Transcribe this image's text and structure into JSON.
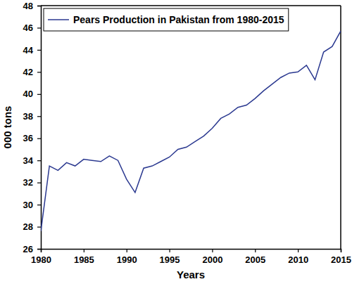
{
  "chart_data": {
    "type": "line",
    "x_label": "Years",
    "y_label": "000 tons",
    "x": [
      1980,
      1981,
      1982,
      1983,
      1984,
      1985,
      1986,
      1987,
      1988,
      1989,
      1990,
      1991,
      1992,
      1993,
      1994,
      1995,
      1996,
      1997,
      1998,
      1999,
      2000,
      2001,
      2002,
      2003,
      2004,
      2005,
      2006,
      2007,
      2008,
      2009,
      2010,
      2011,
      2012,
      2013,
      2014,
      2015
    ],
    "series": [
      {
        "name": "Pears Production in Pakistan from 1980-2015",
        "color": "#2b3990",
        "values": [
          27.6,
          33.5,
          33.1,
          33.8,
          33.5,
          34.1,
          34.0,
          33.9,
          34.4,
          34.0,
          32.3,
          31.1,
          33.3,
          33.5,
          33.9,
          34.3,
          35.0,
          35.2,
          35.7,
          36.2,
          36.9,
          37.8,
          38.2,
          38.8,
          39.0,
          39.6,
          40.3,
          40.9,
          41.5,
          41.9,
          42.0,
          42.6,
          41.3,
          43.8,
          44.3,
          45.7
        ]
      }
    ],
    "xlim": [
      1980,
      2015
    ],
    "ylim": [
      26,
      48
    ],
    "xticks": [
      1980,
      1985,
      1990,
      1995,
      2000,
      2005,
      2010,
      2015
    ],
    "yticks": [
      26,
      28,
      30,
      32,
      34,
      36,
      38,
      40,
      42,
      44,
      46,
      48
    ],
    "grid": false,
    "legend": "upper left"
  }
}
